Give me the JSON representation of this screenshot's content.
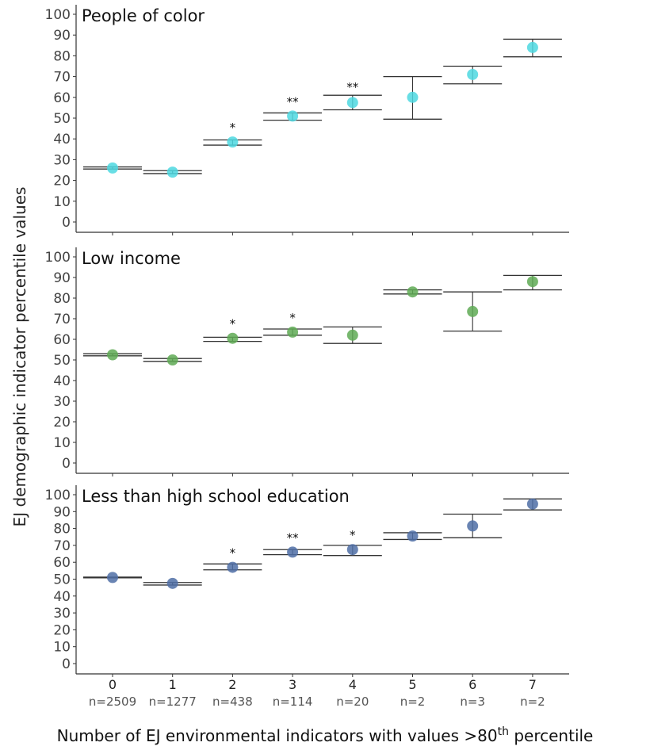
{
  "figure": {
    "ylabel": "EJ demographic indicator percentile values",
    "xlabel": {
      "main": "Number of EJ environmental indicators with values >80",
      "sup": "th",
      "tail": " percentile"
    }
  },
  "chart_data": [
    {
      "type": "scatter",
      "title": "People of color",
      "color": "#4dd8e0",
      "ylim": [
        0,
        100
      ],
      "yticks": [
        0,
        10,
        20,
        30,
        40,
        50,
        60,
        70,
        80,
        90,
        100
      ],
      "categories": [
        "0",
        "1",
        "2",
        "3",
        "4",
        "5",
        "6",
        "7"
      ],
      "sample_sizes": [
        "n=2509",
        "n=1277",
        "n=438",
        "n=114",
        "n=20",
        "n=2",
        "n=3",
        "n=2"
      ],
      "values": [
        26,
        24,
        38.5,
        51,
        57.5,
        60,
        71,
        84
      ],
      "lower": [
        25.5,
        23.3,
        37,
        49,
        54,
        49.5,
        66.5,
        79.5
      ],
      "upper": [
        26.5,
        24.7,
        39.5,
        52.5,
        61,
        70,
        75,
        88
      ],
      "significance": [
        "",
        "",
        "*",
        "**",
        "**",
        "",
        "",
        ""
      ]
    },
    {
      "type": "scatter",
      "title": "Low income",
      "color": "#5faa55",
      "ylim": [
        0,
        100
      ],
      "yticks": [
        0,
        10,
        20,
        30,
        40,
        50,
        60,
        70,
        80,
        90,
        100
      ],
      "categories": [
        "0",
        "1",
        "2",
        "3",
        "4",
        "5",
        "6",
        "7"
      ],
      "values": [
        52.5,
        50,
        60.5,
        63.5,
        62,
        83,
        73.5,
        88
      ],
      "lower": [
        52,
        49.3,
        59,
        62,
        58,
        82,
        64,
        84
      ],
      "upper": [
        53,
        50.7,
        61,
        65,
        66,
        84,
        83,
        91
      ],
      "significance": [
        "",
        "",
        "*",
        "*",
        "",
        "",
        "",
        ""
      ]
    },
    {
      "type": "scatter",
      "title": "Less than high school education",
      "color": "#4f6fa6",
      "ylim": [
        0,
        100
      ],
      "yticks": [
        0,
        10,
        20,
        30,
        40,
        50,
        60,
        70,
        80,
        90,
        100
      ],
      "categories": [
        "0",
        "1",
        "2",
        "3",
        "4",
        "5",
        "6",
        "7"
      ],
      "values": [
        51,
        47.5,
        57,
        66,
        67.5,
        75.5,
        81.5,
        94.5
      ],
      "lower": [
        50.8,
        46.5,
        55.5,
        64.5,
        64,
        73.5,
        74.5,
        91
      ],
      "upper": [
        51.2,
        48,
        59,
        67.5,
        70,
        77.5,
        88.5,
        97.5
      ],
      "significance": [
        "",
        "",
        "*",
        "**",
        "*",
        "",
        "",
        ""
      ]
    }
  ]
}
